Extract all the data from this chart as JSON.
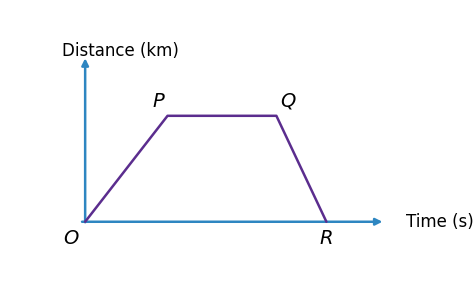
{
  "xlabel": "Time (s)",
  "ylabel": "Distance (km)",
  "background_color": "#ffffff",
  "axis_color": "#2e86c1",
  "trapezoid_color": "#5b2d8e",
  "trapezoid_linewidth": 1.8,
  "points": {
    "O": [
      0.0,
      0.0
    ],
    "P": [
      0.28,
      0.65
    ],
    "Q": [
      0.65,
      0.65
    ],
    "R": [
      0.82,
      0.0
    ]
  },
  "axis_label_fontsize": 12,
  "point_label_fontsize": 14
}
